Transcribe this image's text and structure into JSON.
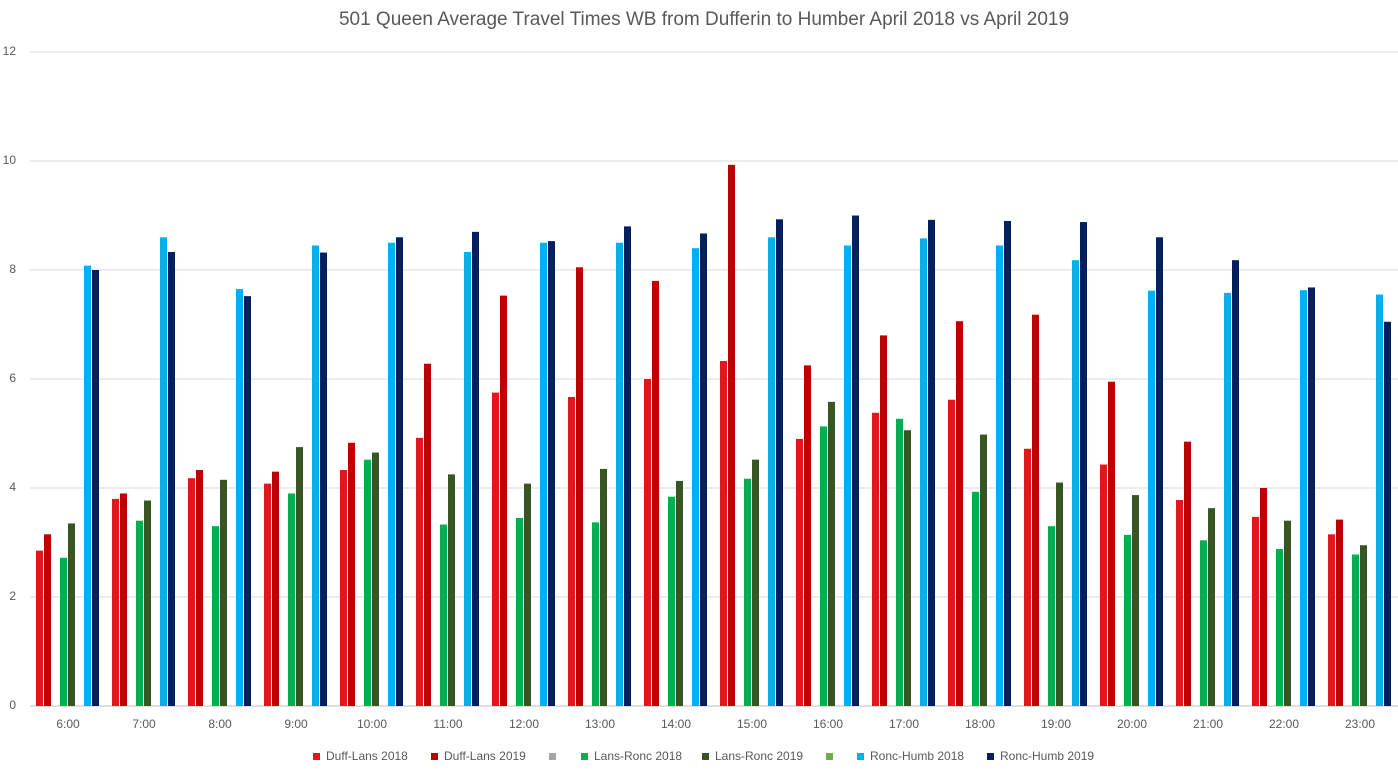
{
  "chart_data": {
    "type": "bar",
    "title": "501 Queen Average Travel Times  WB from Dufferin to Humber April 2018 vs April 2019",
    "categories": [
      "6:00",
      "7:00",
      "8:00",
      "9:00",
      "10:00",
      "11:00",
      "12:00",
      "13:00",
      "14:00",
      "15:00",
      "16:00",
      "17:00",
      "18:00",
      "19:00",
      "20:00",
      "21:00",
      "22:00",
      "23:00"
    ],
    "ylim": [
      0,
      12
    ],
    "yticks": [
      0,
      2,
      4,
      6,
      8,
      10,
      12
    ],
    "grid": true,
    "legend": "bottom",
    "series": [
      {
        "name": "Duff-Lans 2018",
        "color": "#e8141c",
        "values": [
          2.85,
          3.8,
          4.18,
          4.08,
          4.33,
          4.92,
          5.75,
          5.67,
          6.0,
          6.33,
          4.9,
          5.38,
          5.62,
          4.72,
          4.43,
          3.78,
          3.47,
          3.15
        ]
      },
      {
        "name": "Duff-Lans 2019",
        "color": "#c00000",
        "values": [
          3.15,
          3.9,
          4.33,
          4.3,
          4.83,
          6.28,
          7.53,
          8.05,
          7.8,
          9.93,
          6.25,
          6.8,
          7.06,
          7.18,
          5.95,
          4.85,
          4.0,
          3.42
        ]
      },
      {
        "name": null,
        "color": "#a5a5a5",
        "values": [
          null,
          null,
          null,
          null,
          null,
          null,
          null,
          null,
          null,
          null,
          null,
          null,
          null,
          null,
          null,
          null,
          null,
          null
        ]
      },
      {
        "name": "Lans-Ronc 2018",
        "color": "#00b050",
        "values": [
          2.72,
          3.4,
          3.3,
          3.9,
          4.52,
          3.33,
          3.45,
          3.37,
          3.84,
          4.17,
          5.13,
          5.27,
          3.93,
          3.3,
          3.14,
          3.04,
          2.88,
          2.78
        ]
      },
      {
        "name": "Lans-Ronc 2019",
        "color": "#375623",
        "values": [
          3.35,
          3.77,
          4.15,
          4.75,
          4.65,
          4.25,
          4.08,
          4.35,
          4.13,
          4.52,
          5.58,
          5.06,
          4.98,
          4.1,
          3.87,
          3.63,
          3.4,
          2.95
        ]
      },
      {
        "name": null,
        "color": "#70ad47",
        "values": [
          null,
          null,
          null,
          null,
          null,
          null,
          null,
          null,
          null,
          null,
          null,
          null,
          null,
          null,
          null,
          null,
          null,
          null
        ]
      },
      {
        "name": "Ronc-Humb 2018",
        "color": "#00b0f0",
        "values": [
          8.08,
          8.6,
          7.65,
          8.45,
          8.5,
          8.33,
          8.5,
          8.5,
          8.4,
          8.6,
          8.45,
          8.58,
          8.45,
          8.18,
          7.62,
          7.58,
          7.63,
          7.55
        ]
      },
      {
        "name": "Ronc-Humb 2019",
        "color": "#002060",
        "values": [
          8.0,
          8.33,
          7.52,
          8.32,
          8.6,
          8.7,
          8.53,
          8.8,
          8.67,
          8.93,
          9.0,
          8.92,
          8.9,
          8.88,
          8.6,
          8.18,
          7.68,
          7.05
        ]
      }
    ]
  }
}
